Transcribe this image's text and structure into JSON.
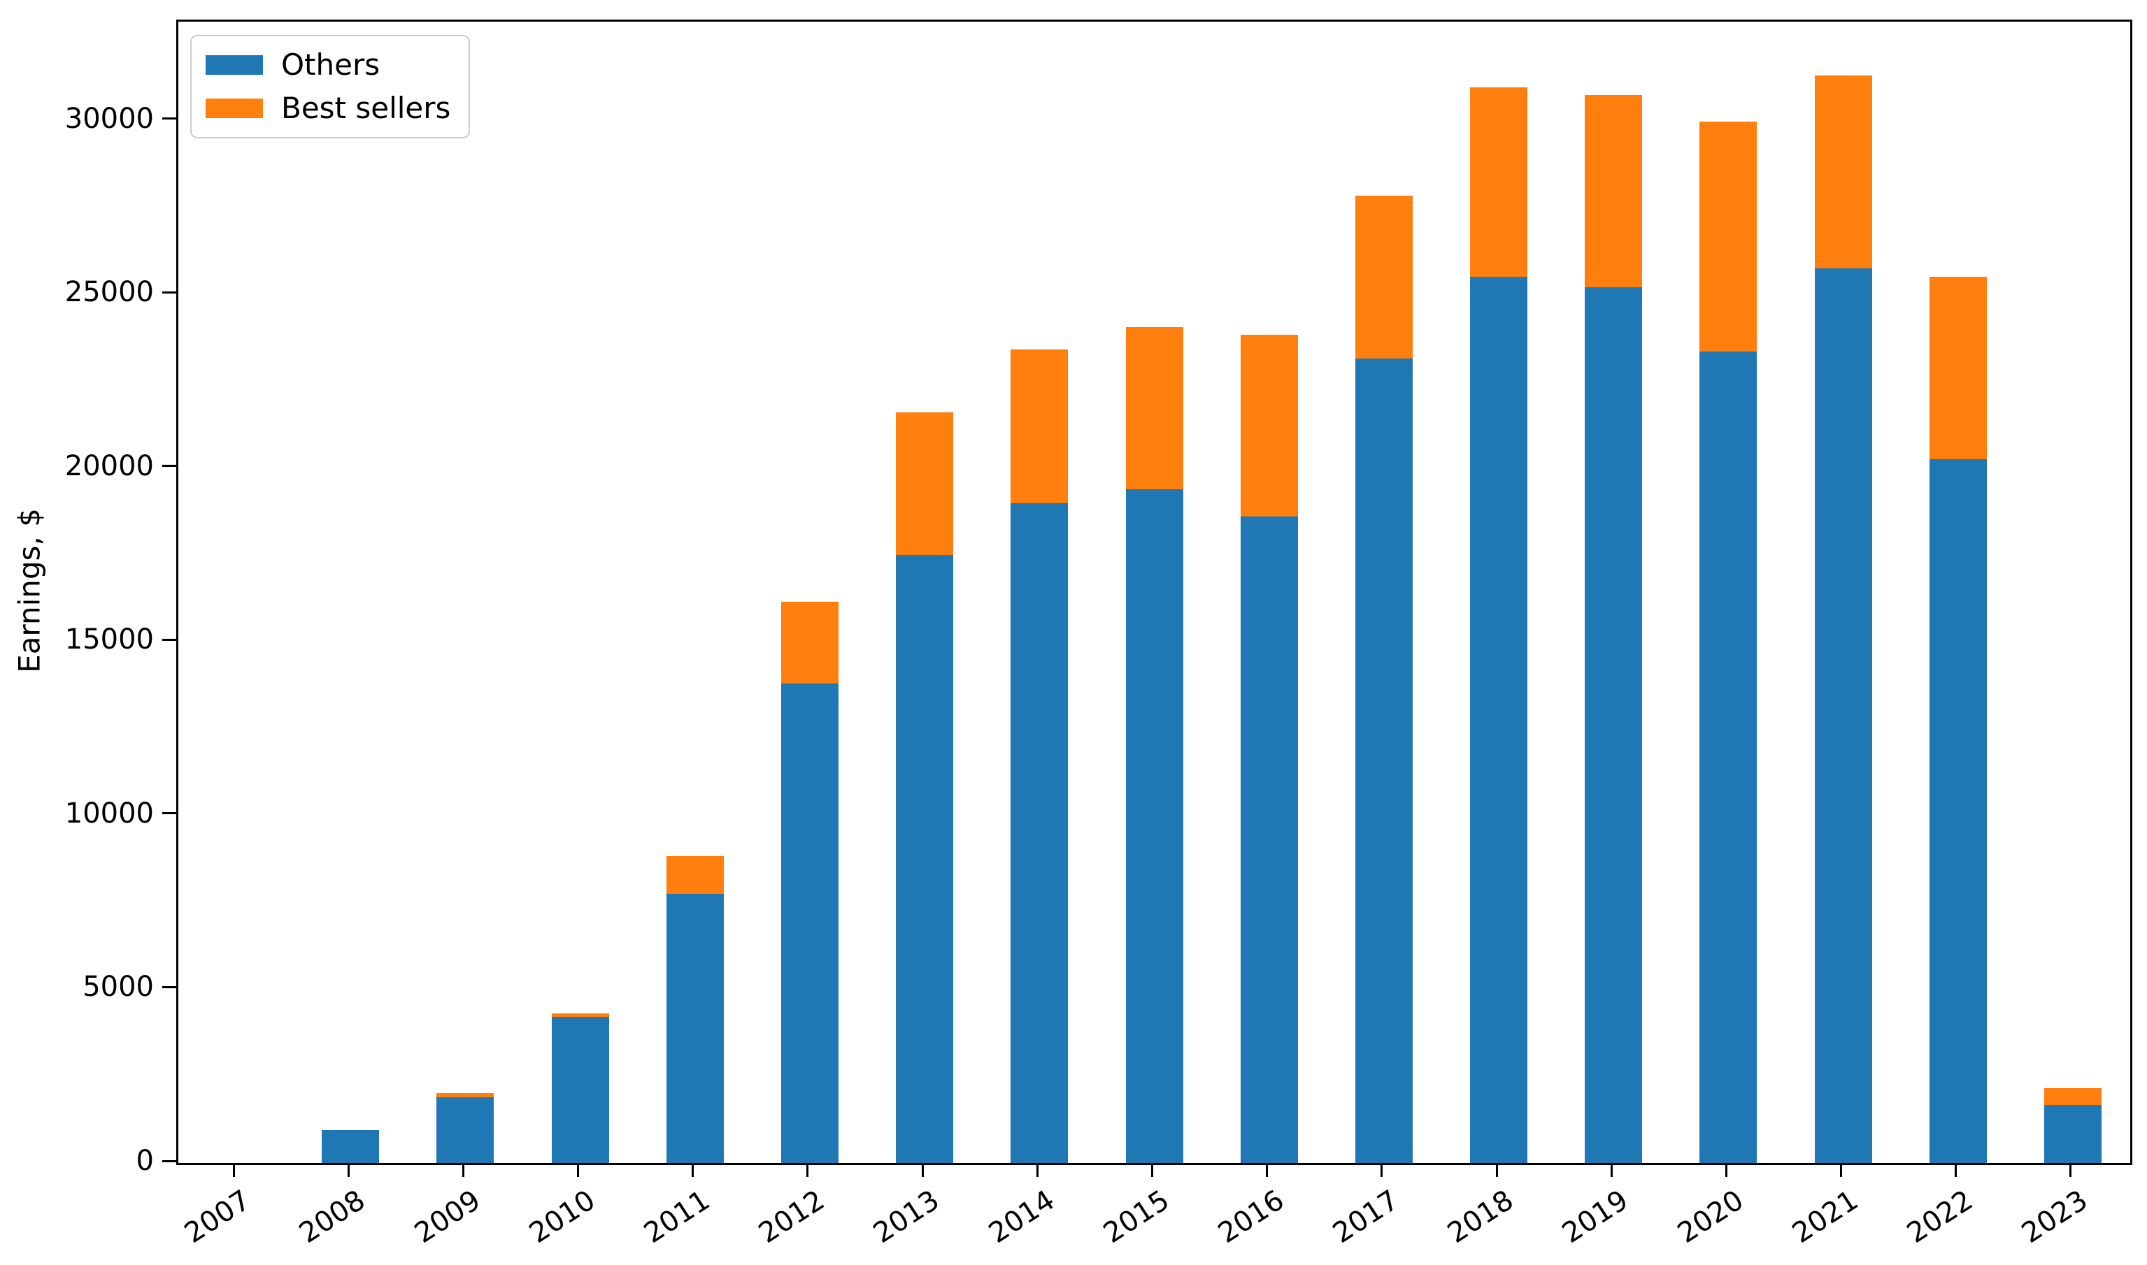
{
  "chart_data": {
    "type": "bar",
    "stacked": true,
    "title": "",
    "xlabel": "",
    "ylabel": "Earnings, $",
    "categories": [
      "2007",
      "2008",
      "2009",
      "2010",
      "2011",
      "2012",
      "2013",
      "2014",
      "2015",
      "2016",
      "2017",
      "2018",
      "2019",
      "2020",
      "2021",
      "2022",
      "2023"
    ],
    "series": [
      {
        "name": "Others",
        "color": "#1f77b4",
        "values": [
          0,
          950,
          1900,
          4200,
          7750,
          13800,
          17500,
          19000,
          19400,
          18600,
          23150,
          25500,
          25200,
          23350,
          25750,
          20250,
          1680
        ]
      },
      {
        "name": "Best sellers",
        "color": "#ff7f0e",
        "values": [
          0,
          0,
          120,
          100,
          1090,
          2350,
          4100,
          4420,
          4650,
          5240,
          4700,
          5450,
          5540,
          6620,
          5560,
          5250,
          480
        ]
      }
    ],
    "yticks": [
      0,
      5000,
      10000,
      15000,
      20000,
      25000,
      30000
    ],
    "ylim": [
      0,
      32850
    ],
    "grid": false,
    "legend_position": "upper left",
    "x_tick_label_rotation_deg": 33
  }
}
